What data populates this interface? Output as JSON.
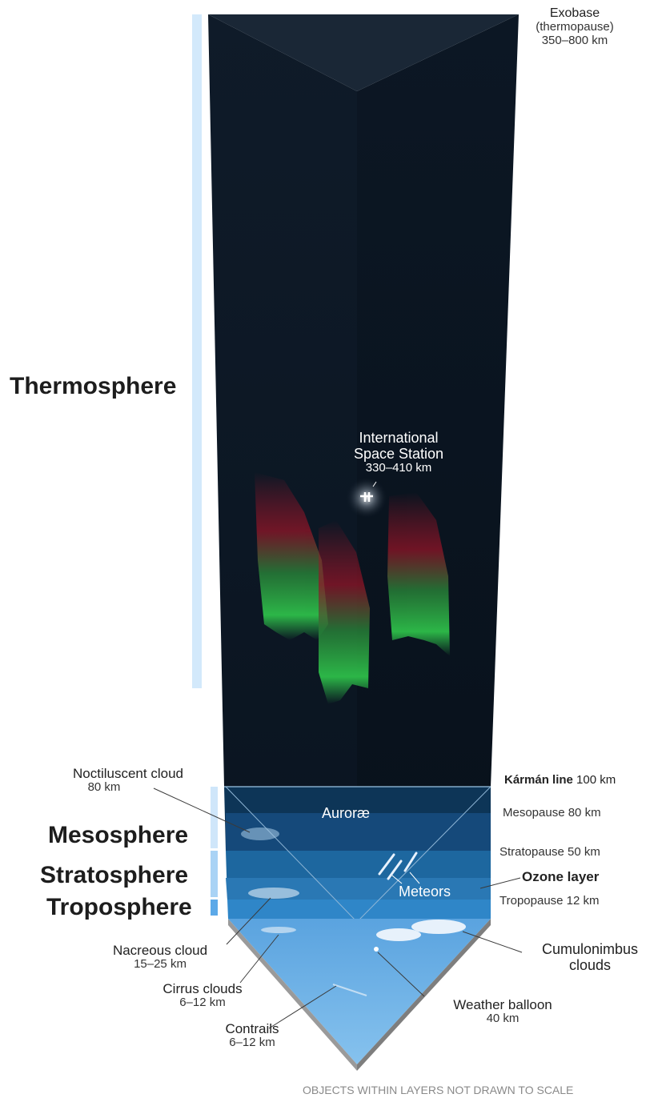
{
  "layers": {
    "thermosphere": "Thermosphere",
    "mesosphere": "Mesosphere",
    "stratosphere": "Stratosphere",
    "troposphere": "Troposphere"
  },
  "exobase": {
    "name": "Exobase",
    "alt_name": "(thermopause)",
    "altitude": "350–800 km"
  },
  "iss": {
    "line1": "International",
    "line2": "Space Station",
    "altitude": "330–410 km"
  },
  "boundaries": {
    "karman": {
      "name": "Kármán line",
      "altitude": "100 km"
    },
    "mesopause": "Mesopause 80 km",
    "stratopause": "Stratopause 50 km",
    "ozone": "Ozone layer",
    "tropopause": "Tropopause 12 km"
  },
  "objects": {
    "noctilucent": {
      "name": "Noctiluscent cloud",
      "altitude": "80 km"
    },
    "aurorae": "Auroræ",
    "meteors": "Meteors",
    "nacreous": {
      "name": "Nacreous cloud",
      "altitude": "15–25 km"
    },
    "cirrus": {
      "name": "Cirrus clouds",
      "altitude": "6–12 km"
    },
    "contrails": {
      "name": "Contrails",
      "altitude": "6–12 km"
    },
    "weather_balloon": {
      "name": "Weather balloon",
      "altitude": "40 km"
    },
    "cumulonimbus": {
      "line1": "Cumulonimbus",
      "line2": "clouds"
    }
  },
  "footer": "OBJECTS WITHIN LAYERS NOT DRAWN TO SCALE",
  "colors": {
    "space": "#0b1623",
    "mesosphere": "#0e3a63",
    "stratosphere": "#1f6ba6",
    "troposphere": "#5aa6e0",
    "aurora_green": "#2fc24a",
    "aurora_red": "#c0142a",
    "scale_bar": "#cfe7fb"
  }
}
